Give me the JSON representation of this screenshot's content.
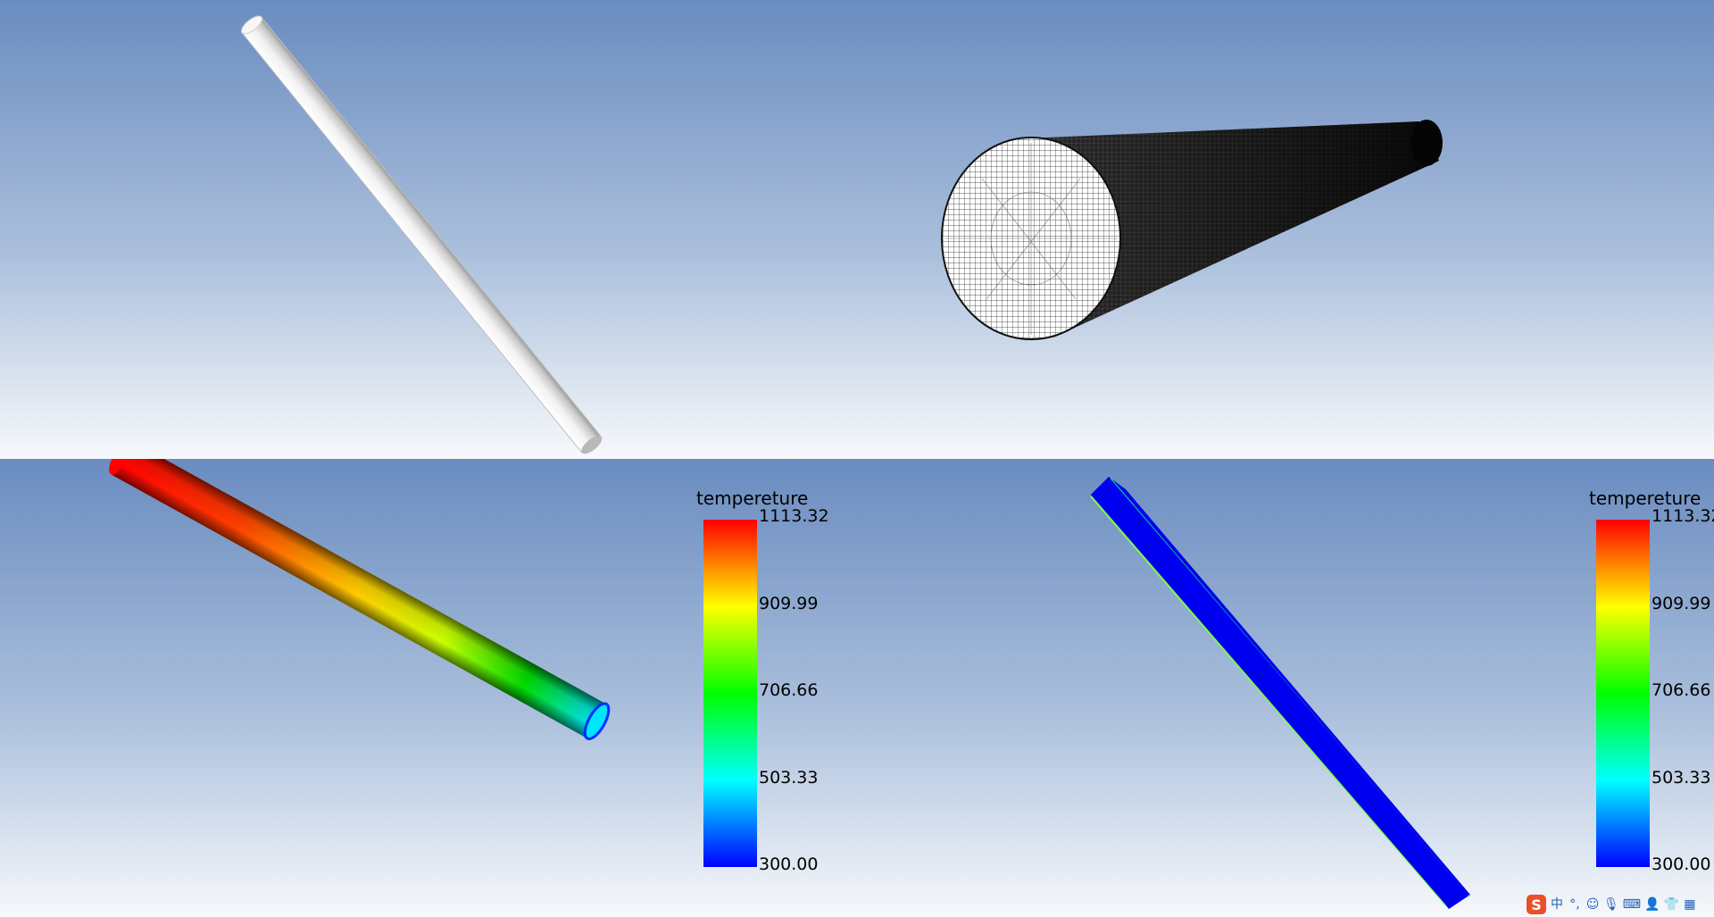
{
  "viewports": {
    "bottom_left": {
      "legend": {
        "title": "tempereture",
        "ticks": [
          "1113.32",
          "909.99",
          "706.66",
          "503.33",
          "300.00"
        ]
      }
    },
    "bottom_right": {
      "legend": {
        "title": "tempereture",
        "ticks": [
          "1113.32",
          "909.99",
          "706.66",
          "503.33",
          "300.00"
        ]
      }
    }
  },
  "colormap": [
    "#ff0000",
    "#ffff00",
    "#00ff00",
    "#00ffff",
    "#0000ff"
  ],
  "tray": {
    "logo": "S",
    "ime_mode": "中",
    "punctuation": "°,",
    "icons": [
      "emoji-icon",
      "microphone-icon",
      "keyboard-icon",
      "user-icon",
      "skin-icon",
      "toolbox-icon"
    ]
  }
}
